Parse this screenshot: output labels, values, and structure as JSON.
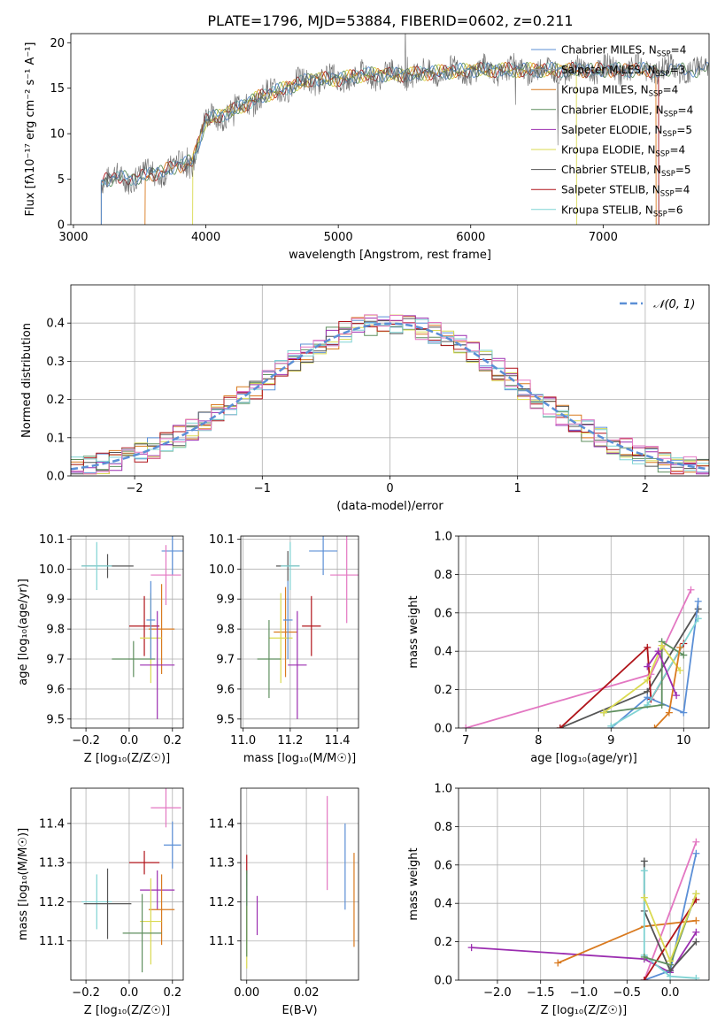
{
  "figure_title": "PLATE=1796, MJD=53884, FIBERID=0602, z=0.211",
  "colors": {
    "Chabrier MILES": "#5b8fd6",
    "Salpeter MILES": "#9b9b9b",
    "Kroupa MILES": "#d97a1f",
    "Chabrier ELODIE": "#5f8f5f",
    "Salpeter ELODIE": "#9b2db0",
    "Kroupa ELODIE": "#dada50",
    "Chabrier STELIB": "#555555",
    "Salpeter STELIB": "#b0141a",
    "Kroupa STELIB": "#7fd3d3",
    "extra_pink": "#e377c2",
    "normal_curve": "#5b8fd6"
  },
  "chart_data": [
    {
      "id": "spectrum",
      "type": "line",
      "xlabel": "wavelength [Angstrom, rest frame]",
      "ylabel": "Flux [fλ10⁻¹⁷ erg cm⁻² s⁻¹ A⁻¹]",
      "xlim": [
        2980,
        7800
      ],
      "ylim": [
        0,
        21
      ],
      "xticks": [
        "3000",
        "4000",
        "5000",
        "6000",
        "7000"
      ],
      "yticks": [
        "0",
        "5",
        "10",
        "15",
        "20"
      ],
      "legend_position": "right",
      "legend": [
        {
          "name": "Chabrier MILES",
          "nssp": "4"
        },
        {
          "name": "Salpeter MILES",
          "nssp": "3"
        },
        {
          "name": "Kroupa MILES",
          "nssp": "4"
        },
        {
          "name": "Chabrier ELODIE",
          "nssp": "4"
        },
        {
          "name": "Salpeter ELODIE",
          "nssp": "5"
        },
        {
          "name": "Kroupa ELODIE",
          "nssp": "4"
        },
        {
          "name": "Chabrier STELIB",
          "nssp": "5"
        },
        {
          "name": "Salpeter STELIB",
          "nssp": "4"
        },
        {
          "name": "Kroupa STELIB",
          "nssp": "6"
        }
      ],
      "data_start_wavelength": 3210,
      "data_end_wavelength": 7800,
      "approx_envelope": [
        [
          3210,
          5.0
        ],
        [
          3500,
          5.2
        ],
        [
          3700,
          6.0
        ],
        [
          3900,
          7.0
        ],
        [
          4000,
          11.5
        ],
        [
          4200,
          12.5
        ],
        [
          4400,
          14.0
        ],
        [
          4600,
          15.0
        ],
        [
          4800,
          16.0
        ],
        [
          5000,
          16.0
        ],
        [
          5200,
          16.5
        ],
        [
          5500,
          16.5
        ],
        [
          6000,
          17.0
        ],
        [
          6500,
          17.0
        ],
        [
          7000,
          17.0
        ],
        [
          7500,
          17.0
        ],
        [
          7800,
          17.0
        ]
      ],
      "model_cutoffs": {
        "Kroupa MILES": [
          3540,
          7400
        ],
        "Kroupa ELODIE": [
          3900,
          6800
        ],
        "Salpeter STELIB": [
          3210,
          7420
        ],
        "Kroupa STELIB": [
          3210,
          7420
        ]
      }
    },
    {
      "id": "residuals",
      "type": "histogram",
      "xlabel": "(data-model)/error",
      "ylabel": "Normed distribution",
      "xlim": [
        -2.5,
        2.5
      ],
      "ylim": [
        0,
        0.5
      ],
      "xticks": [
        "−2",
        "−1",
        "0",
        "1",
        "2"
      ],
      "yticks": [
        "0.0",
        "0.1",
        "0.2",
        "0.3",
        "0.4"
      ],
      "legend_label": "𝒩(0, 1)",
      "legend_position": "top-right",
      "bin_width": 0.1
    },
    {
      "id": "age_vs_Z",
      "type": "scatter",
      "xlabel": "Z [log₁₀(Z/Z☉)]",
      "ylabel": "age  [log₁₀(age/yr)]",
      "xlim": [
        -0.27,
        0.25
      ],
      "ylim": [
        9.47,
        10.11
      ],
      "xticks": [
        "−0.2",
        "0.0",
        "0.2"
      ],
      "yticks": [
        "9.5",
        "9.6",
        "9.7",
        "9.8",
        "9.9",
        "10.0",
        "10.1"
      ],
      "points": [
        {
          "series": "Chabrier MILES",
          "x": 0.2,
          "y": 10.06,
          "xerr": 0.05,
          "yerr": 0.08
        },
        {
          "series": "Chabrier STELIB",
          "x": -0.1,
          "y": 10.01,
          "xerr": 0.12,
          "yerr": 0.04
        },
        {
          "series": "Kroupa STELIB",
          "x": -0.15,
          "y": 10.01,
          "xerr": 0.07,
          "yerr": 0.08
        },
        {
          "series": "extra_pink",
          "x": 0.17,
          "y": 9.98,
          "xerr": 0.07,
          "yerr": 0.1
        },
        {
          "series": "Salpeter STELIB",
          "x": 0.07,
          "y": 9.81,
          "xerr": 0.07,
          "yerr": 0.1
        },
        {
          "series": "Kroupa MILES",
          "x": 0.15,
          "y": 9.8,
          "xerr": 0.06,
          "yerr": 0.15
        },
        {
          "series": "Kroupa ELODIE",
          "x": 0.1,
          "y": 9.77,
          "xerr": 0.05,
          "yerr": 0.15
        },
        {
          "series": "Chabrier ELODIE",
          "x": 0.02,
          "y": 9.7,
          "xerr": 0.1,
          "yerr": 0.06
        },
        {
          "series": "Salpeter ELODIE",
          "x": 0.13,
          "y": 9.68,
          "xerr": 0.08,
          "yerr": 0.18
        },
        {
          "series": "Chabrier MILES",
          "x": 0.1,
          "y": 9.83,
          "xerr": 0.02,
          "yerr": 0.13
        }
      ]
    },
    {
      "id": "age_vs_mass",
      "type": "scatter",
      "xlabel": "mass [log₁₀(M/M☉)]",
      "ylabel": "",
      "xlim": [
        10.99,
        11.49
      ],
      "ylim": [
        9.47,
        10.11
      ],
      "xticks": [
        "11.0",
        "11.2",
        "11.4"
      ],
      "yticks": [
        "9.5",
        "9.6",
        "9.7",
        "9.8",
        "9.9",
        "10.0",
        "10.1"
      ],
      "points": [
        {
          "series": "Chabrier MILES",
          "x": 11.34,
          "y": 10.06,
          "xerr": 0.06,
          "yerr": 0.08
        },
        {
          "series": "Chabrier STELIB",
          "x": 11.19,
          "y": 10.01,
          "xerr": 0.05,
          "yerr": 0.05
        },
        {
          "series": "Kroupa STELIB",
          "x": 11.2,
          "y": 10.01,
          "xerr": 0.04,
          "yerr": 0.08
        },
        {
          "series": "extra_pink",
          "x": 11.44,
          "y": 9.98,
          "xerr": 0.07,
          "yerr": 0.16
        },
        {
          "series": "Salpeter STELIB",
          "x": 11.29,
          "y": 9.81,
          "xerr": 0.04,
          "yerr": 0.1
        },
        {
          "series": "Kroupa MILES",
          "x": 11.18,
          "y": 9.79,
          "xerr": 0.05,
          "yerr": 0.15
        },
        {
          "series": "Kroupa ELODIE",
          "x": 11.16,
          "y": 9.77,
          "xerr": 0.05,
          "yerr": 0.15
        },
        {
          "series": "Chabrier ELODIE",
          "x": 11.11,
          "y": 9.7,
          "xerr": 0.05,
          "yerr": 0.13
        },
        {
          "series": "Salpeter ELODIE",
          "x": 11.23,
          "y": 9.68,
          "xerr": 0.04,
          "yerr": 0.18
        },
        {
          "series": "Chabrier MILES",
          "x": 11.19,
          "y": 9.83,
          "xerr": 0.02,
          "yerr": 0.13
        }
      ]
    },
    {
      "id": "mass_weight_vs_age",
      "type": "line",
      "xlabel": "age  [log₁₀(age/yr)]",
      "ylabel": "mass weight",
      "xlim": [
        6.9,
        10.35
      ],
      "ylim": [
        0,
        1
      ],
      "xticks": [
        "7",
        "8",
        "9",
        "10"
      ],
      "yticks": [
        "0.0",
        "0.2",
        "0.4",
        "0.6",
        "0.8",
        "1.0"
      ],
      "series": [
        {
          "name": "extra_pink",
          "points": [
            [
              7.0,
              0.0
            ],
            [
              9.55,
              0.28
            ],
            [
              10.1,
              0.72
            ]
          ]
        },
        {
          "name": "Chabrier STELIB",
          "points": [
            [
              8.3,
              0.0
            ],
            [
              9.5,
              0.19
            ],
            [
              10.2,
              0.62
            ]
          ]
        },
        {
          "name": "Salpeter STELIB",
          "points": [
            [
              8.3,
              0.0
            ],
            [
              9.5,
              0.42
            ],
            [
              9.55,
              0.15
            ],
            [
              10.0,
              0.44
            ]
          ]
        },
        {
          "name": "Chabrier MILES",
          "points": [
            [
              9.0,
              0.0
            ],
            [
              9.5,
              0.16
            ],
            [
              10.0,
              0.08
            ],
            [
              10.2,
              0.66
            ]
          ]
        },
        {
          "name": "Kroupa STELIB",
          "points": [
            [
              9.0,
              0.01
            ],
            [
              9.5,
              0.12
            ],
            [
              10.2,
              0.57
            ]
          ]
        },
        {
          "name": "Chabrier ELODIE",
          "points": [
            [
              8.9,
              0.08
            ],
            [
              9.7,
              0.12
            ],
            [
              9.7,
              0.45
            ],
            [
              10.0,
              0.38
            ]
          ]
        },
        {
          "name": "Kroupa ELODIE",
          "points": [
            [
              8.9,
              0.08
            ],
            [
              9.5,
              0.25
            ],
            [
              9.7,
              0.43
            ],
            [
              9.95,
              0.3
            ]
          ]
        },
        {
          "name": "Kroupa MILES",
          "points": [
            [
              9.6,
              0.0
            ],
            [
              9.8,
              0.08
            ],
            [
              9.95,
              0.42
            ]
          ]
        },
        {
          "name": "Salpeter ELODIE",
          "points": [
            [
              9.5,
              0.32
            ],
            [
              9.65,
              0.4
            ],
            [
              9.9,
              0.17
            ]
          ]
        }
      ]
    },
    {
      "id": "mass_vs_Z",
      "type": "scatter",
      "xlabel": "Z [log₁₀(Z/Z☉)]",
      "ylabel": "mass [log₁₀(M/M☉)]",
      "xlim": [
        -0.27,
        0.25
      ],
      "ylim": [
        11.0,
        11.49
      ],
      "xticks": [
        "−0.2",
        "0.0",
        "0.2"
      ],
      "yticks": [
        "11.1",
        "11.2",
        "11.3",
        "11.4"
      ],
      "points": [
        {
          "series": "extra_pink",
          "x": 0.17,
          "y": 11.44,
          "xerr": 0.07,
          "yerr": 0.05
        },
        {
          "series": "Chabrier MILES",
          "x": 0.2,
          "y": 11.345,
          "xerr": 0.04,
          "yerr": 0.06
        },
        {
          "series": "Salpeter STELIB",
          "x": 0.07,
          "y": 11.3,
          "xerr": 0.07,
          "yerr": 0.03
        },
        {
          "series": "Kroupa STELIB",
          "x": -0.15,
          "y": 11.2,
          "xerr": 0.07,
          "yerr": 0.07
        },
        {
          "series": "Chabrier STELIB",
          "x": -0.1,
          "y": 11.195,
          "xerr": 0.11,
          "yerr": 0.09
        },
        {
          "series": "Salpeter ELODIE",
          "x": 0.13,
          "y": 11.23,
          "xerr": 0.08,
          "yerr": 0.05
        },
        {
          "series": "Kroupa MILES",
          "x": 0.15,
          "y": 11.18,
          "xerr": 0.06,
          "yerr": 0.09
        },
        {
          "series": "Kroupa ELODIE",
          "x": 0.1,
          "y": 11.15,
          "xerr": 0.05,
          "yerr": 0.11
        },
        {
          "series": "Chabrier ELODIE",
          "x": 0.06,
          "y": 11.12,
          "xerr": 0.09,
          "yerr": 0.1
        }
      ]
    },
    {
      "id": "mass_vs_EBV",
      "type": "scatter",
      "xlabel": "E(B-V)",
      "ylabel": "",
      "xlim": [
        -0.002,
        0.0375
      ],
      "ylim": [
        11.0,
        11.49
      ],
      "xticks": [
        "0.00",
        "0.02"
      ],
      "yticks": [
        "11.1",
        "11.2",
        "11.3",
        "11.4"
      ],
      "points": [
        {
          "series": "extra_pink",
          "x": 0.027,
          "y": 11.35,
          "yerr": 0.12
        },
        {
          "series": "Chabrier MILES",
          "x": 0.033,
          "y": 11.29,
          "yerr": 0.11
        },
        {
          "series": "Kroupa MILES",
          "x": 0.036,
          "y": 11.205,
          "yerr": 0.12
        },
        {
          "series": "Salpeter STELIB",
          "x": 0.0,
          "y": 11.28,
          "yerr": 0.04
        },
        {
          "series": "Kroupa STELIB",
          "x": 0.0,
          "y": 11.2,
          "yerr": 0.07
        },
        {
          "series": "Chabrier STELIB",
          "x": 0.0,
          "y": 11.19,
          "yerr": 0.09
        },
        {
          "series": "Salpeter ELODIE",
          "x": 0.0035,
          "y": 11.165,
          "yerr": 0.05
        },
        {
          "series": "Kroupa ELODIE",
          "x": 0.0,
          "y": 11.11,
          "yerr": 0.08
        },
        {
          "series": "Chabrier ELODIE",
          "x": 0.0,
          "y": 11.17,
          "yerr": 0.11
        }
      ]
    },
    {
      "id": "mass_weight_vs_Z",
      "type": "line",
      "xlabel": "Z [log₁₀(Z/Z☉)]",
      "ylabel": "mass weight",
      "xlim": [
        -2.45,
        0.45
      ],
      "ylim": [
        0,
        1
      ],
      "xticks": [
        "−2.0",
        "−1.5",
        "−1.0",
        "−0.5",
        "0.0"
      ],
      "yticks": [
        "0.0",
        "0.2",
        "0.4",
        "0.6",
        "0.8",
        "1.0"
      ],
      "series": [
        {
          "name": "Salpeter ELODIE",
          "points": [
            [
              -2.3,
              0.17
            ],
            [
              -0.3,
              0.11
            ],
            [
              0.0,
              0.04
            ],
            [
              0.3,
              0.25
            ]
          ]
        },
        {
          "name": "Kroupa MILES",
          "points": [
            [
              -1.3,
              0.09
            ],
            [
              -0.3,
              0.28
            ],
            [
              0.3,
              0.31
            ]
          ]
        },
        {
          "name": "Chabrier MILES",
          "points": [
            [
              -0.3,
              0.0
            ],
            [
              0.0,
              0.05
            ],
            [
              0.3,
              0.66
            ]
          ]
        },
        {
          "name": "extra_pink",
          "points": [
            [
              -0.3,
              0.0
            ],
            [
              0.3,
              0.72
            ]
          ]
        },
        {
          "name": "Chabrier STELIB",
          "points": [
            [
              -0.3,
              0.62
            ],
            [
              -0.3,
              0.36
            ],
            [
              0.0,
              0.05
            ],
            [
              0.3,
              0.2
            ]
          ]
        },
        {
          "name": "Kroupa STELIB",
          "points": [
            [
              -0.3,
              0.57
            ],
            [
              -0.3,
              0.13
            ],
            [
              0.0,
              0.02
            ],
            [
              0.3,
              0.01
            ]
          ]
        },
        {
          "name": "Salpeter STELIB",
          "points": [
            [
              -0.3,
              0.0
            ],
            [
              0.3,
              0.42
            ]
          ]
        },
        {
          "name": "Chabrier ELODIE",
          "points": [
            [
              -0.3,
              0.12
            ],
            [
              0.0,
              0.08
            ],
            [
              0.3,
              0.45
            ]
          ]
        },
        {
          "name": "Kroupa ELODIE",
          "points": [
            [
              -0.3,
              0.43
            ],
            [
              0.0,
              0.1
            ],
            [
              0.3,
              0.45
            ]
          ]
        }
      ]
    }
  ]
}
